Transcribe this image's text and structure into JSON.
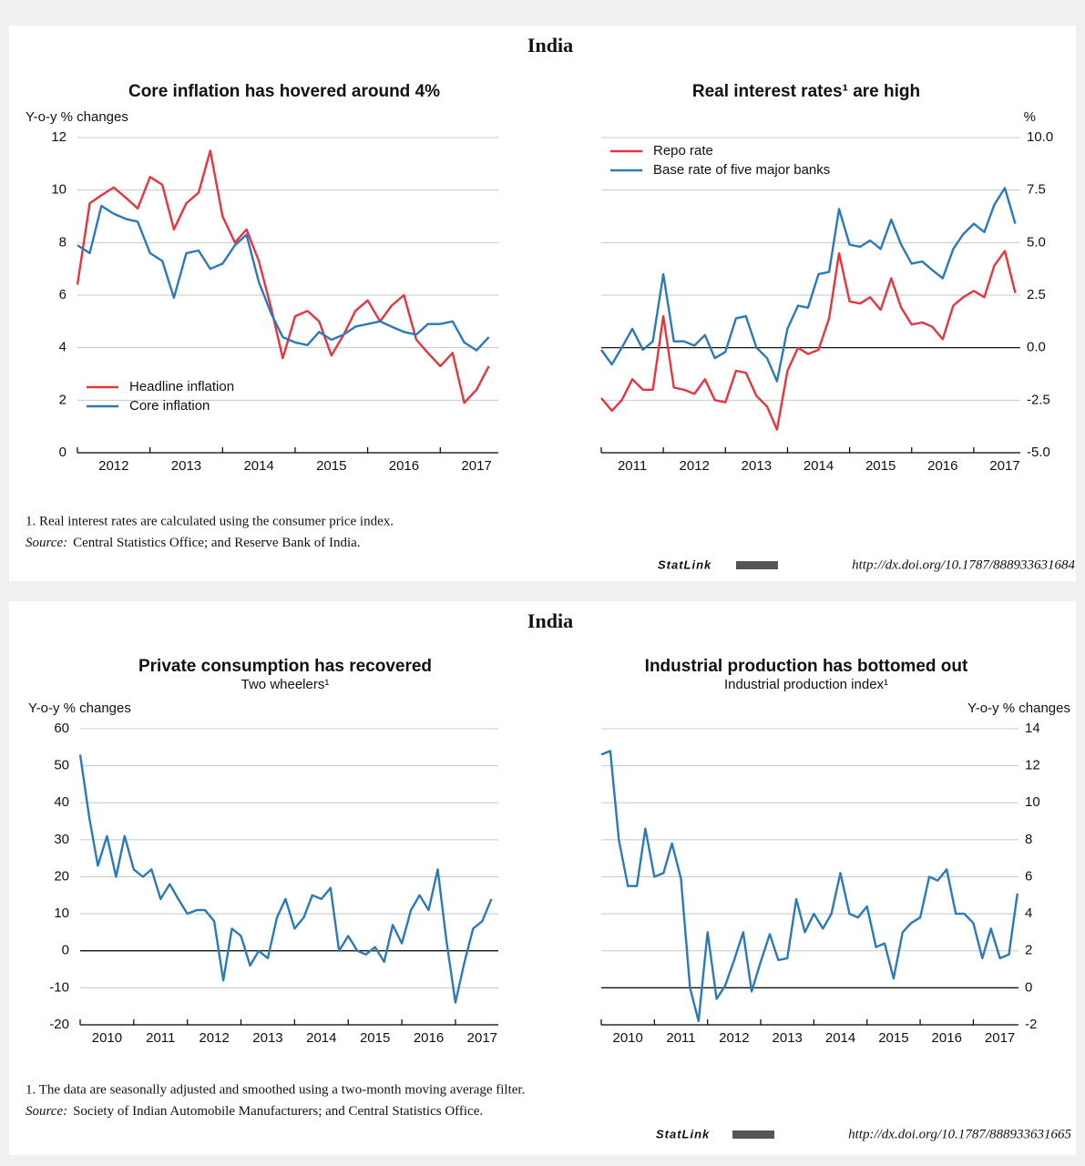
{
  "panels": [
    {
      "title": "India",
      "note": "1.  Real interest rates are calculated using the consumer price index.",
      "source_label": "Source:",
      "source": "Central Statistics Office; and Reserve Bank of India.",
      "statlink": "StatLink",
      "url": "http://dx.doi.org/10.1787/888933631684"
    },
    {
      "title": "India",
      "note": "1.  The data are seasonally adjusted and smoothed using a two-month moving average filter.",
      "source_label": "Source:",
      "source": "Society of Indian Automobile Manufacturers; and Central Statistics Office.",
      "statlink": "StatLink",
      "url": "http://dx.doi.org/10.1787/888933631665"
    }
  ],
  "chart_data": [
    {
      "type": "line",
      "title": "Core inflation has hovered around 4%",
      "y_label": "Y-o-y % changes",
      "y_side": "left",
      "x": [
        2012,
        2012.17,
        2012.33,
        2012.5,
        2012.67,
        2012.83,
        2013,
        2013.17,
        2013.33,
        2013.5,
        2013.67,
        2013.83,
        2014,
        2014.17,
        2014.33,
        2014.5,
        2014.67,
        2014.83,
        2015,
        2015.17,
        2015.33,
        2015.5,
        2015.67,
        2015.83,
        2016,
        2016.17,
        2016.33,
        2016.5,
        2016.67,
        2016.83,
        2017,
        2017.17,
        2017.33,
        2017.5,
        2017.67
      ],
      "series": [
        {
          "name": "Headline inflation",
          "color": "#e8343f",
          "values": [
            6.4,
            9.5,
            9.8,
            10.1,
            9.7,
            9.3,
            10.5,
            10.2,
            8.5,
            9.5,
            9.9,
            11.5,
            9.0,
            8.0,
            8.5,
            7.3,
            5.5,
            3.6,
            5.2,
            5.4,
            5.0,
            3.7,
            4.5,
            5.4,
            5.8,
            5.0,
            5.6,
            6.0,
            4.3,
            3.8,
            3.3,
            3.8,
            1.9,
            2.4,
            3.3
          ]
        },
        {
          "name": "Core inflation",
          "color": "#2a7ab9",
          "values": [
            7.9,
            7.6,
            9.4,
            9.1,
            8.9,
            8.8,
            7.6,
            7.3,
            5.9,
            7.6,
            7.7,
            7.0,
            7.2,
            7.9,
            8.3,
            6.5,
            5.3,
            4.4,
            4.2,
            4.1,
            4.6,
            4.3,
            4.5,
            4.8,
            4.9,
            5.0,
            4.8,
            4.6,
            4.5,
            4.9,
            4.9,
            5.0,
            4.2,
            3.9,
            4.4
          ]
        }
      ],
      "xlim": [
        2012,
        2017.8
      ],
      "xticks": [
        {
          "value": 2012.5,
          "label": "2012"
        },
        {
          "value": 2013.5,
          "label": "2013"
        },
        {
          "value": 2014.5,
          "label": "2014"
        },
        {
          "value": 2015.5,
          "label": "2015"
        },
        {
          "value": 2016.5,
          "label": "2016"
        },
        {
          "value": 2017.5,
          "label": "2017"
        }
      ],
      "ylim": [
        0,
        12
      ],
      "yticks": [
        0,
        2,
        4,
        6,
        8,
        10,
        12
      ],
      "grid": true,
      "zero_line": false,
      "legend": "lower left"
    },
    {
      "type": "line",
      "title": "Real interest rates¹ are high",
      "y_label": "%",
      "y_side": "right",
      "x": [
        2011,
        2011.17,
        2011.33,
        2011.5,
        2011.67,
        2011.83,
        2012,
        2012.17,
        2012.33,
        2012.5,
        2012.67,
        2012.83,
        2013,
        2013.17,
        2013.33,
        2013.5,
        2013.67,
        2013.83,
        2014,
        2014.17,
        2014.33,
        2014.5,
        2014.67,
        2014.83,
        2015,
        2015.17,
        2015.33,
        2015.5,
        2015.67,
        2015.83,
        2016,
        2016.17,
        2016.33,
        2016.5,
        2016.67,
        2016.83,
        2017,
        2017.17,
        2017.33,
        2017.5,
        2017.67
      ],
      "series": [
        {
          "name": "Repo rate",
          "color": "#e8343f",
          "values": [
            -2.4,
            -3.0,
            -2.5,
            -1.5,
            -2.0,
            -2.0,
            1.5,
            -1.9,
            -2.0,
            -2.2,
            -1.5,
            -2.5,
            -2.6,
            -1.1,
            -1.2,
            -2.3,
            -2.8,
            -3.9,
            -1.1,
            0.0,
            -0.3,
            -0.1,
            1.4,
            4.5,
            2.2,
            2.1,
            2.4,
            1.8,
            3.3,
            1.9,
            1.1,
            1.2,
            1.0,
            0.4,
            2.0,
            2.4,
            2.7,
            2.4,
            3.9,
            4.6,
            2.6
          ]
        },
        {
          "name": "Base rate of five major banks",
          "color": "#2a7ab9",
          "values": [
            -0.1,
            -0.8,
            0.0,
            0.9,
            -0.1,
            0.3,
            3.5,
            0.3,
            0.3,
            0.1,
            0.6,
            -0.5,
            -0.2,
            1.4,
            1.5,
            0.0,
            -0.5,
            -1.6,
            0.9,
            2.0,
            1.9,
            3.5,
            3.6,
            6.6,
            4.9,
            4.8,
            5.1,
            4.7,
            6.1,
            4.9,
            4.0,
            4.1,
            3.7,
            3.3,
            4.7,
            5.4,
            5.9,
            5.5,
            6.8,
            7.6,
            5.9
          ]
        }
      ],
      "xlim": [
        2011,
        2017.75
      ],
      "xticks": [
        {
          "value": 2011.5,
          "label": "2011"
        },
        {
          "value": 2012.5,
          "label": "2012"
        },
        {
          "value": 2013.5,
          "label": "2013"
        },
        {
          "value": 2014.5,
          "label": "2014"
        },
        {
          "value": 2015.5,
          "label": "2015"
        },
        {
          "value": 2016.5,
          "label": "2016"
        },
        {
          "value": 2017.5,
          "label": "2017"
        }
      ],
      "ylim": [
        -5,
        10
      ],
      "yticks": [
        {
          "value": -5,
          "label": "-5.0"
        },
        {
          "value": -2.5,
          "label": "-2.5"
        },
        {
          "value": 0,
          "label": "0.0"
        },
        {
          "value": 2.5,
          "label": "2.5"
        },
        {
          "value": 5,
          "label": "5.0"
        },
        {
          "value": 7.5,
          "label": "7.5"
        },
        {
          "value": 10,
          "label": "10.0"
        }
      ],
      "grid": true,
      "zero_line": true,
      "legend": "upper left"
    },
    {
      "type": "line",
      "title": "Private consumption has recovered",
      "subtitle": "Two wheelers¹",
      "y_label": "Y-o-y % changes",
      "y_side": "left",
      "x": [
        2010,
        2010.17,
        2010.33,
        2010.5,
        2010.67,
        2010.83,
        2011,
        2011.17,
        2011.33,
        2011.5,
        2011.67,
        2011.83,
        2012,
        2012.17,
        2012.33,
        2012.5,
        2012.67,
        2012.83,
        2013,
        2013.17,
        2013.33,
        2013.5,
        2013.67,
        2013.83,
        2014,
        2014.17,
        2014.33,
        2014.5,
        2014.67,
        2014.83,
        2015,
        2015.17,
        2015.33,
        2015.5,
        2015.67,
        2015.83,
        2016,
        2016.17,
        2016.33,
        2016.5,
        2016.67,
        2016.83,
        2017,
        2017.17,
        2017.33,
        2017.5,
        2017.67
      ],
      "series": [
        {
          "name": "Two wheelers",
          "color": "#2a7ab9",
          "values": [
            53,
            36,
            23,
            31,
            20,
            31,
            22,
            20,
            22,
            14,
            18,
            14,
            10,
            11,
            11,
            8,
            -8,
            6,
            4,
            -4,
            0,
            -2,
            9,
            14,
            6,
            9,
            15,
            14,
            17,
            0,
            4,
            0,
            -1,
            1,
            -3,
            7,
            2,
            11,
            15,
            11,
            22,
            3,
            -14,
            -3,
            6,
            8,
            14
          ]
        }
      ],
      "xlim": [
        2010,
        2017.8
      ],
      "xticks": [
        {
          "value": 2010.5,
          "label": "2010"
        },
        {
          "value": 2011.5,
          "label": "2011"
        },
        {
          "value": 2012.5,
          "label": "2012"
        },
        {
          "value": 2013.5,
          "label": "2013"
        },
        {
          "value": 2014.5,
          "label": "2014"
        },
        {
          "value": 2015.5,
          "label": "2015"
        },
        {
          "value": 2016.5,
          "label": "2016"
        },
        {
          "value": 2017.5,
          "label": "2017"
        }
      ],
      "ylim": [
        -20,
        60
      ],
      "yticks": [
        -20,
        -10,
        0,
        10,
        20,
        30,
        40,
        50,
        60
      ],
      "grid": true,
      "zero_line": true
    },
    {
      "type": "line",
      "title": "Industrial production has bottomed out",
      "subtitle": "Industrial production index¹",
      "y_label": "Y-o-y % changes",
      "y_side": "right",
      "x": [
        2010,
        2010.17,
        2010.33,
        2010.5,
        2010.67,
        2010.83,
        2011,
        2011.17,
        2011.33,
        2011.5,
        2011.67,
        2011.83,
        2012,
        2012.17,
        2012.33,
        2012.5,
        2012.67,
        2012.83,
        2013,
        2013.17,
        2013.33,
        2013.5,
        2013.67,
        2013.83,
        2014,
        2014.17,
        2014.33,
        2014.5,
        2014.67,
        2014.83,
        2015,
        2015.17,
        2015.33,
        2015.5,
        2015.67,
        2015.83,
        2016,
        2016.17,
        2016.33,
        2016.5,
        2016.67,
        2016.83,
        2017,
        2017.17,
        2017.33,
        2017.5,
        2017.67,
        2017.83
      ],
      "series": [
        {
          "name": "Industrial production index",
          "color": "#2a7ab9",
          "values": [
            12.6,
            12.8,
            8.0,
            5.5,
            5.5,
            8.6,
            6.0,
            6.2,
            7.8,
            5.9,
            0.0,
            -1.8,
            3.0,
            -0.6,
            0.1,
            1.5,
            3.0,
            -0.2,
            1.4,
            2.9,
            1.5,
            1.6,
            4.8,
            3.0,
            4.0,
            3.2,
            4.0,
            6.2,
            4.0,
            3.8,
            4.4,
            2.2,
            2.4,
            0.5,
            3.0,
            3.5,
            3.8,
            6.0,
            5.8,
            6.4,
            4.0,
            4.0,
            3.5,
            1.6,
            3.2,
            1.6,
            1.8,
            5.1
          ]
        }
      ],
      "xlim": [
        2010,
        2017.85
      ],
      "xticks": [
        {
          "value": 2010.5,
          "label": "2010"
        },
        {
          "value": 2011.5,
          "label": "2011"
        },
        {
          "value": 2012.5,
          "label": "2012"
        },
        {
          "value": 2013.5,
          "label": "2013"
        },
        {
          "value": 2014.5,
          "label": "2014"
        },
        {
          "value": 2015.5,
          "label": "2015"
        },
        {
          "value": 2016.5,
          "label": "2016"
        },
        {
          "value": 2017.5,
          "label": "2017"
        }
      ],
      "ylim": [
        -2,
        14
      ],
      "yticks": [
        -2,
        0,
        2,
        4,
        6,
        8,
        10,
        12,
        14
      ],
      "grid": true,
      "zero_line": true
    }
  ]
}
